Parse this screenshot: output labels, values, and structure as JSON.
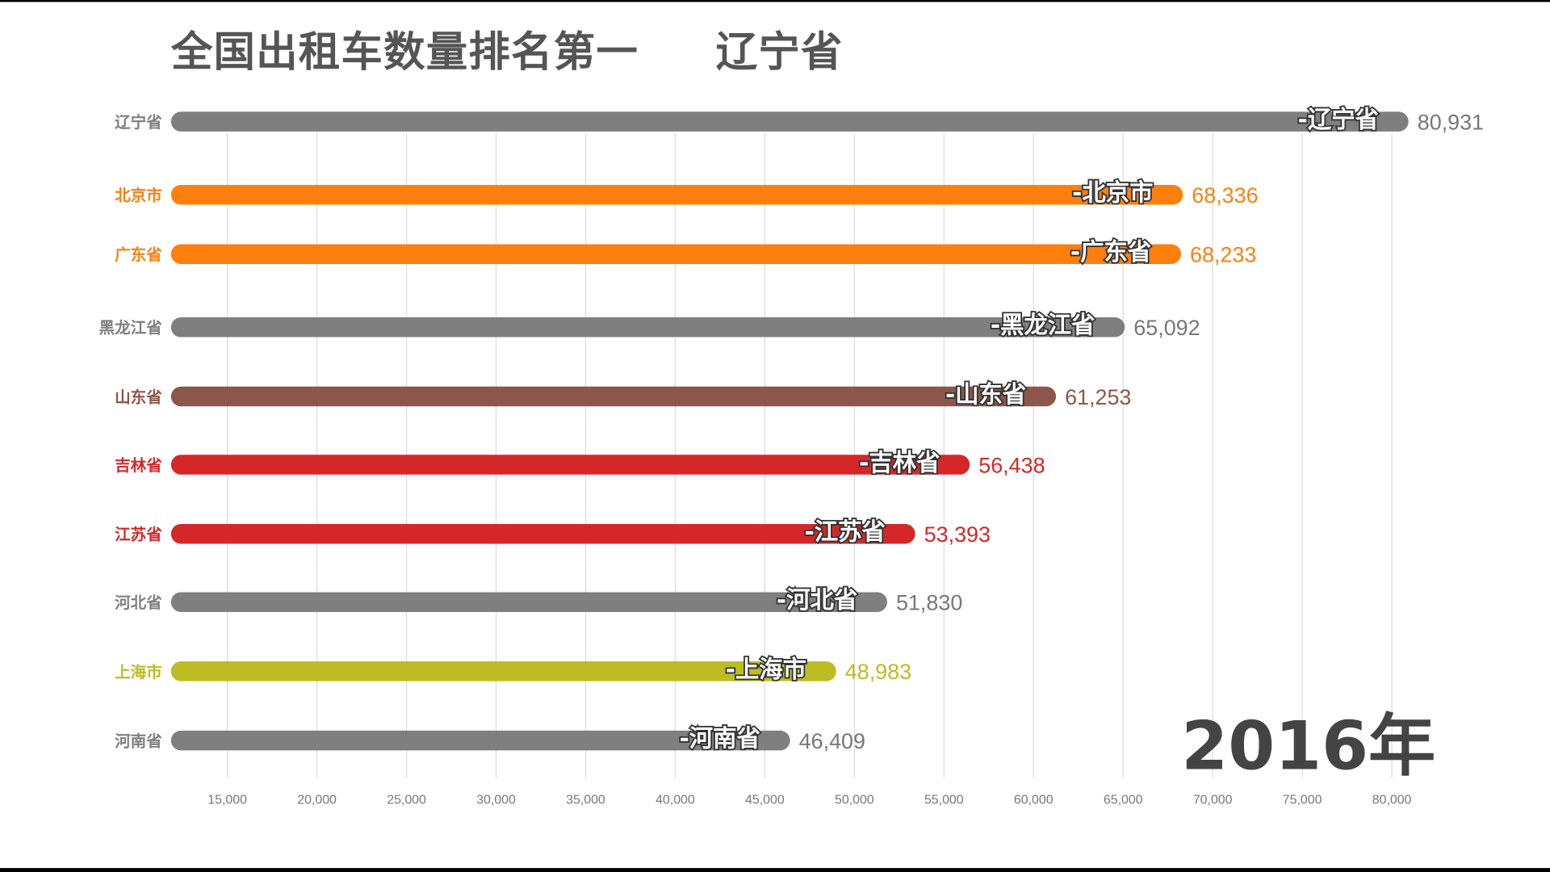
{
  "title": "全国出租车数量排名第一     辽宁省",
  "year_label": "2016年",
  "chart_data": {
    "type": "bar",
    "orientation": "horizontal",
    "title": "全国出租车数量排名第一     辽宁省",
    "annotation": "2016年",
    "categories": [
      "辽宁省",
      "北京市",
      "广东省",
      "黑龙江省",
      "山东省",
      "吉林省",
      "江苏省",
      "河北省",
      "上海市",
      "河南省"
    ],
    "values": [
      80931,
      68336,
      68233,
      65092,
      61253,
      56438,
      53393,
      51830,
      48983,
      46409
    ],
    "value_labels": [
      "80,931",
      "68,336",
      "68,233",
      "65,092",
      "61,253",
      "56,438",
      "53,393",
      "51,830",
      "48,983",
      "46,409"
    ],
    "bar_labels": [
      "-辽宁省",
      "-北京市",
      "-广东省",
      "-黑龙江省",
      "-山东省",
      "-吉林省",
      "-江苏省",
      "-河北省",
      "-上海市",
      "-河南省"
    ],
    "colors": [
      "#7f7f7f",
      "#ff7f0e",
      "#ff7f0e",
      "#7f7f7f",
      "#8c564b",
      "#d62728",
      "#d62728",
      "#7f7f7f",
      "#bcbd22",
      "#7f7f7f"
    ],
    "x_ticks": [
      15000,
      20000,
      25000,
      30000,
      35000,
      40000,
      45000,
      50000,
      55000,
      60000,
      65000,
      70000,
      75000,
      80000
    ],
    "x_tick_labels": [
      "15,000",
      "20,000",
      "25,000",
      "30,000",
      "35,000",
      "40,000",
      "45,000",
      "50,000",
      "55,000",
      "60,000",
      "65,000",
      "70,000",
      "75,000",
      "80,000"
    ],
    "xlim": [
      12000,
      80931
    ],
    "grid": "vertical",
    "xlabel": "",
    "ylabel": ""
  }
}
